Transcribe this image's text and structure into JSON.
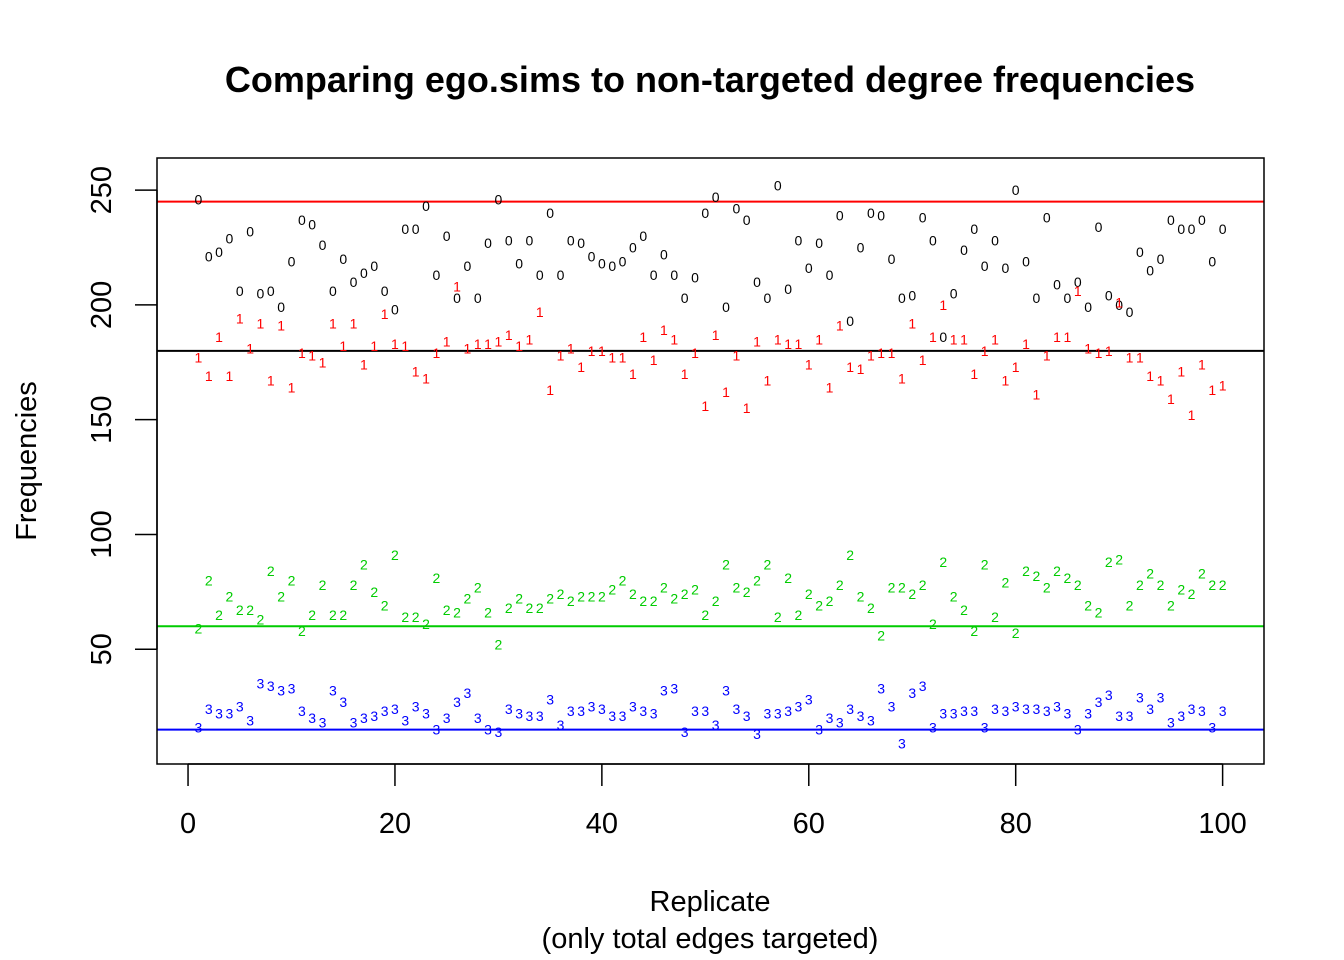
{
  "chart_data": {
    "type": "scatter",
    "title": "Comparing ego.sims to non-targeted degree frequencies",
    "xlabel": "Replicate",
    "xlabel_sub": "(only total edges targeted)",
    "ylabel": "Frequencies",
    "xlim": [
      -3,
      104
    ],
    "ylim": [
      0,
      264
    ],
    "xticks": [
      0,
      20,
      40,
      60,
      80,
      100
    ],
    "yticks": [
      50,
      100,
      150,
      200,
      250
    ],
    "grid": false,
    "legend": "none",
    "x": [
      1,
      2,
      3,
      4,
      5,
      6,
      7,
      8,
      9,
      10,
      11,
      12,
      13,
      14,
      15,
      16,
      17,
      18,
      19,
      20,
      21,
      22,
      23,
      24,
      25,
      26,
      27,
      28,
      29,
      30,
      31,
      32,
      33,
      34,
      35,
      36,
      37,
      38,
      39,
      40,
      41,
      42,
      43,
      44,
      45,
      46,
      47,
      48,
      49,
      50,
      51,
      52,
      53,
      54,
      55,
      56,
      57,
      58,
      59,
      60,
      61,
      62,
      63,
      64,
      65,
      66,
      67,
      68,
      69,
      70,
      71,
      72,
      73,
      74,
      75,
      76,
      77,
      78,
      79,
      80,
      81,
      82,
      83,
      84,
      85,
      86,
      87,
      88,
      89,
      90,
      91,
      92,
      93,
      94,
      95,
      96,
      97,
      98,
      99,
      100
    ],
    "reference_lines": [
      {
        "y": 245,
        "color": "#ff0000"
      },
      {
        "y": 180,
        "color": "#000000"
      },
      {
        "y": 60,
        "color": "#00cc00"
      },
      {
        "y": 15,
        "color": "#0000ff"
      }
    ],
    "series": [
      {
        "label": "0",
        "color": "#000000",
        "values": [
          246,
          221,
          223,
          229,
          206,
          232,
          205,
          206,
          199,
          219,
          237,
          235,
          226,
          206,
          220,
          210,
          214,
          217,
          206,
          198,
          233,
          233,
          243,
          213,
          230,
          203,
          217,
          203,
          227,
          246,
          228,
          218,
          228,
          213,
          240,
          213,
          228,
          227,
          221,
          218,
          217,
          219,
          225,
          230,
          213,
          222,
          213,
          203,
          212,
          240,
          247,
          199,
          242,
          237,
          210,
          203,
          252,
          207,
          228,
          216,
          227,
          213,
          239,
          193,
          225,
          240,
          239,
          220,
          203,
          204,
          238,
          228,
          186,
          205,
          224,
          233,
          217,
          228,
          216,
          250,
          219,
          203,
          238,
          209,
          203,
          210,
          199,
          234,
          204,
          200,
          197,
          223,
          215,
          220,
          237,
          233,
          233,
          237,
          219,
          233
        ]
      },
      {
        "label": "1",
        "color": "#ff0000",
        "values": [
          177,
          169,
          186,
          169,
          194,
          181,
          192,
          167,
          191,
          164,
          179,
          178,
          175,
          192,
          182,
          192,
          174,
          182,
          196,
          183,
          182,
          171,
          168,
          179,
          184,
          208,
          181,
          183,
          183,
          184,
          187,
          182,
          185,
          197,
          163,
          178,
          181,
          173,
          180,
          180,
          177,
          177,
          170,
          186,
          176,
          189,
          185,
          170,
          179,
          156,
          187,
          162,
          178,
          155,
          184,
          167,
          185,
          183,
          183,
          174,
          185,
          164,
          191,
          173,
          172,
          178,
          179,
          179,
          168,
          192,
          176,
          186,
          200,
          185,
          185,
          170,
          180,
          185,
          167,
          173,
          183,
          161,
          178,
          186,
          186,
          206,
          181,
          179,
          180,
          201,
          177,
          177,
          169,
          167,
          159,
          171,
          152,
          174,
          163,
          165
        ]
      },
      {
        "label": "2",
        "color": "#00cc00",
        "values": [
          59,
          80,
          65,
          73,
          67,
          67,
          63,
          84,
          73,
          80,
          58,
          65,
          78,
          65,
          65,
          78,
          87,
          75,
          69,
          91,
          64,
          64,
          61,
          81,
          67,
          66,
          72,
          77,
          66,
          52,
          68,
          72,
          68,
          68,
          72,
          74,
          71,
          73,
          73,
          73,
          76,
          80,
          74,
          71,
          71,
          77,
          72,
          74,
          76,
          65,
          71,
          87,
          77,
          75,
          80,
          87,
          64,
          81,
          65,
          74,
          69,
          71,
          78,
          91,
          73,
          68,
          56,
          77,
          77,
          74,
          78,
          61,
          88,
          73,
          67,
          58,
          87,
          64,
          79,
          57,
          84,
          82,
          77,
          84,
          81,
          78,
          69,
          66,
          88,
          89,
          69,
          78,
          83,
          78,
          69,
          76,
          74,
          83,
          78,
          78
        ]
      },
      {
        "label": "3",
        "color": "#0000ff",
        "values": [
          16,
          24,
          22,
          22,
          25,
          19,
          35,
          34,
          32,
          33,
          23,
          20,
          18,
          32,
          27,
          18,
          20,
          21,
          23,
          24,
          19,
          25,
          22,
          15,
          20,
          27,
          31,
          20,
          15,
          14,
          24,
          22,
          21,
          21,
          28,
          17,
          23,
          23,
          25,
          24,
          21,
          21,
          25,
          23,
          22,
          32,
          33,
          14,
          23,
          23,
          17,
          32,
          24,
          21,
          13,
          22,
          22,
          23,
          25,
          28,
          15,
          20,
          18,
          24,
          21,
          19,
          33,
          25,
          9,
          31,
          34,
          16,
          22,
          22,
          23,
          23,
          16,
          24,
          23,
          25,
          24,
          24,
          23,
          25,
          22,
          15,
          22,
          27,
          30,
          21,
          21,
          29,
          24,
          29,
          18,
          21,
          24,
          23,
          16,
          23
        ]
      }
    ]
  }
}
